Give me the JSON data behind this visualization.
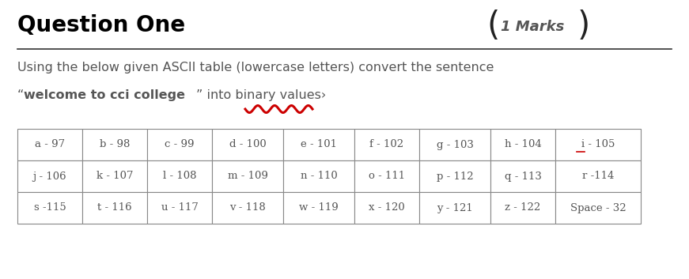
{
  "title": "Question One",
  "marks_text": "1 Marks",
  "paragraph_line1": "Using the below given ASCII table (lowercase letters) convert the sentence",
  "paragraph_line2_bold": "welcome to cci college",
  "table_data": [
    [
      "a - 97",
      "b - 98",
      "c - 99",
      "d - 100",
      "e - 101",
      "f - 102",
      "g - 103",
      "h - 104",
      "i - 105"
    ],
    [
      "j - 106",
      "k - 107",
      "l - 108",
      "m - 109",
      "n - 110",
      "o - 111",
      "p - 112",
      "q - 113",
      "r -114"
    ],
    [
      "s -115",
      "t - 116",
      "u - 117",
      "v - 118",
      "w - 119",
      "x - 120",
      "y - 121",
      "z - 122",
      "Space - 32"
    ]
  ],
  "bg_color": "#ffffff",
  "title_color": "#000000",
  "marks_color": "#555555",
  "text_color": "#555555",
  "table_text_color": "#555555",
  "red_color": "#cc0000",
  "title_fontsize": 20,
  "marks_fontsize": 13,
  "para_fontsize": 11.5,
  "table_fontsize": 9.5
}
